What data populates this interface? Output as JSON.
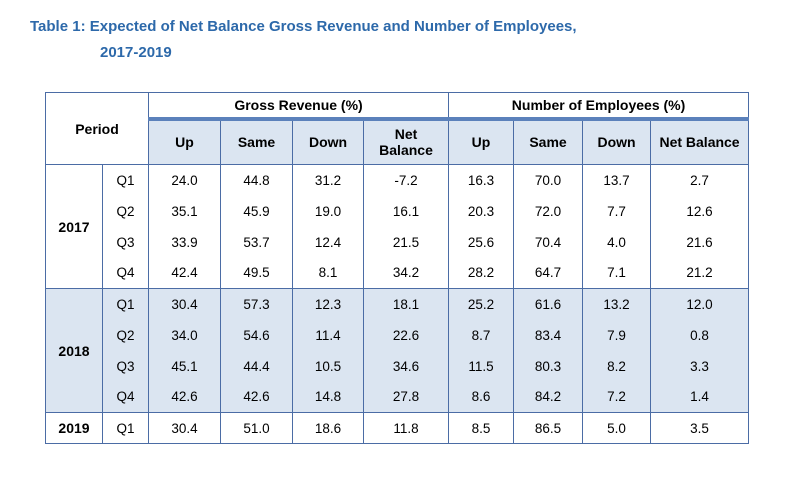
{
  "title": {
    "line1": "Table 1: Expected of Net Balance Gross Revenue and Number of Employees,",
    "line2": "2017-2019"
  },
  "colors": {
    "title_blue": "#2D69AA",
    "header_fill": "#DBE5F1",
    "shaded_band_fill": "#DBE5F1",
    "border_blue": "#4B6CA5",
    "thick_band_blue": "#5B81BB"
  },
  "table": {
    "period_header": "Period",
    "group_headers": [
      "Gross Revenue (%)",
      "Number of Employees (%)"
    ],
    "sub_headers": [
      "Up",
      "Same",
      "Down",
      "Net Balance",
      "Up",
      "Same",
      "Down",
      "Net Balance"
    ],
    "year_blocks": [
      {
        "year": "2017",
        "shaded": false,
        "rows": [
          {
            "quarter": "Q1",
            "values": [
              "24.0",
              "44.8",
              "31.2",
              "-7.2",
              "16.3",
              "70.0",
              "13.7",
              "2.7"
            ]
          },
          {
            "quarter": "Q2",
            "values": [
              "35.1",
              "45.9",
              "19.0",
              "16.1",
              "20.3",
              "72.0",
              "7.7",
              "12.6"
            ]
          },
          {
            "quarter": "Q3",
            "values": [
              "33.9",
              "53.7",
              "12.4",
              "21.5",
              "25.6",
              "70.4",
              "4.0",
              "21.6"
            ]
          },
          {
            "quarter": "Q4",
            "values": [
              "42.4",
              "49.5",
              "8.1",
              "34.2",
              "28.2",
              "64.7",
              "7.1",
              "21.2"
            ]
          }
        ]
      },
      {
        "year": "2018",
        "shaded": true,
        "rows": [
          {
            "quarter": "Q1",
            "values": [
              "30.4",
              "57.3",
              "12.3",
              "18.1",
              "25.2",
              "61.6",
              "13.2",
              "12.0"
            ]
          },
          {
            "quarter": "Q2",
            "values": [
              "34.0",
              "54.6",
              "11.4",
              "22.6",
              "8.7",
              "83.4",
              "7.9",
              "0.8"
            ]
          },
          {
            "quarter": "Q3",
            "values": [
              "45.1",
              "44.4",
              "10.5",
              "34.6",
              "11.5",
              "80.3",
              "8.2",
              "3.3"
            ]
          },
          {
            "quarter": "Q4",
            "values": [
              "42.6",
              "42.6",
              "14.8",
              "27.8",
              "8.6",
              "84.2",
              "7.2",
              "1.4"
            ]
          }
        ]
      },
      {
        "year": "2019",
        "shaded": false,
        "rows": [
          {
            "quarter": "Q1",
            "values": [
              "30.4",
              "51.0",
              "18.6",
              "11.8",
              "8.5",
              "86.5",
              "5.0",
              "3.5"
            ]
          }
        ]
      }
    ]
  }
}
